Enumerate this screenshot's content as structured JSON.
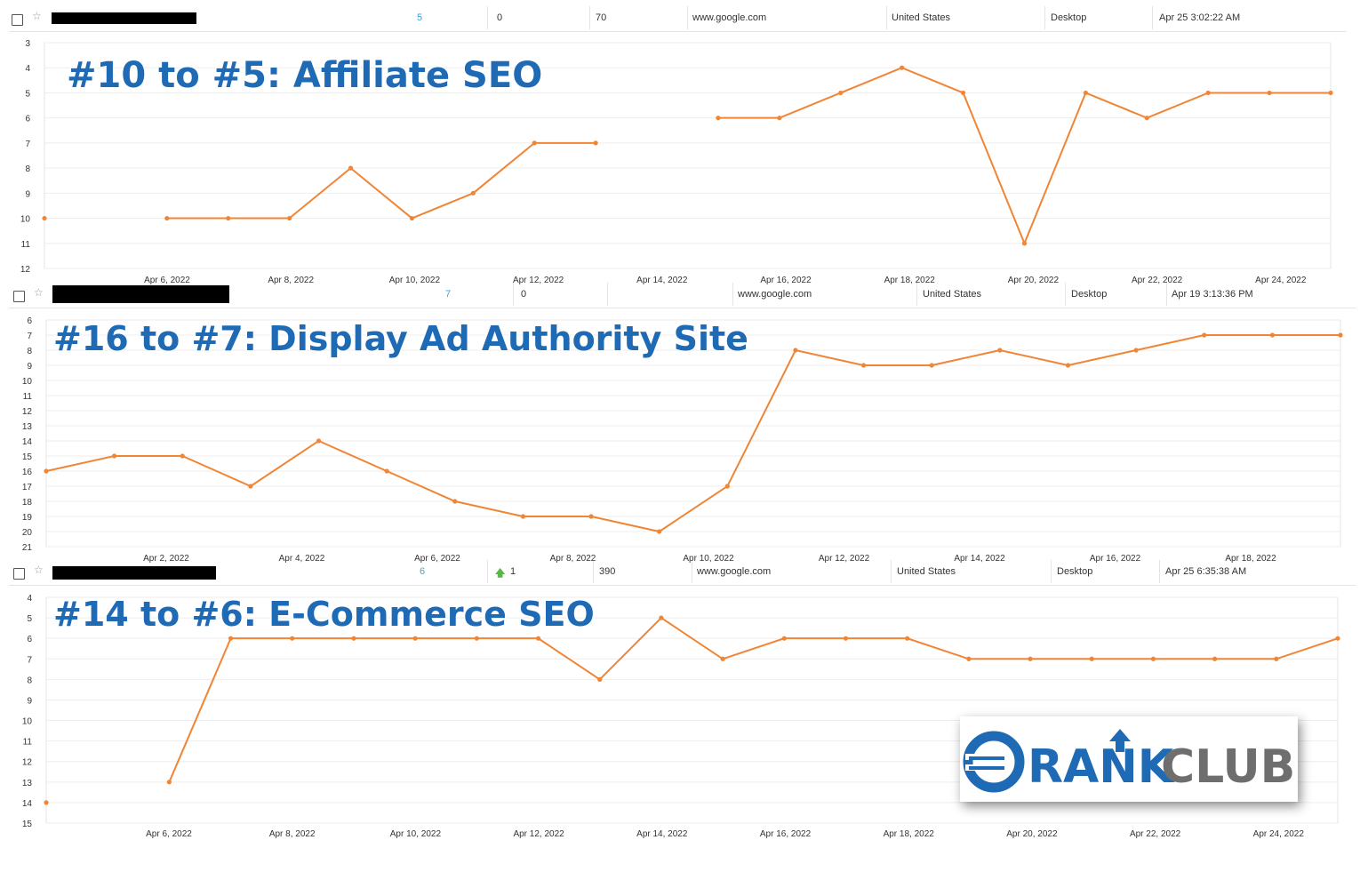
{
  "rows": [
    {
      "position": "5",
      "change": "0",
      "volume": "70",
      "engine": "www.google.com",
      "country": "United States",
      "device": "Desktop",
      "updated": "Apr 25 3:02:22 AM"
    },
    {
      "position": "7",
      "change": "0",
      "volume": "",
      "engine": "www.google.com",
      "country": "United States",
      "device": "Desktop",
      "updated": "Apr 19 3:13:36 PM"
    },
    {
      "position": "6",
      "change": "1",
      "volume": "390",
      "engine": "www.google.com",
      "country": "United States",
      "device": "Desktop",
      "updated": "Apr 25 6:35:38 AM"
    }
  ],
  "icons": {
    "checkbox": "checkbox-icon",
    "star": "star-icon",
    "arrow_up": "arrow-up-icon",
    "logo": "rankclub-logo-icon"
  },
  "colors": {
    "series": "#f08536",
    "title": "#1e6ab4",
    "logo_blue": "#1e6ab4",
    "logo_gray": "#6e6e6e"
  },
  "logo": {
    "text1": "RANK",
    "text2": "CLUB"
  },
  "chart_data": [
    {
      "type": "line",
      "title": "#10 to #5: Affiliate SEO",
      "ylim": [
        3,
        12
      ],
      "y_inverted": true,
      "yticks": [
        3,
        4,
        5,
        6,
        7,
        8,
        9,
        10,
        11,
        12
      ],
      "x_labels": [
        "Apr 6, 2022",
        "Apr 8, 2022",
        "Apr 10, 2022",
        "Apr 12, 2022",
        "Apr 14, 2022",
        "Apr 16, 2022",
        "Apr 18, 2022",
        "Apr 20, 2022",
        "Apr 22, 2022",
        "Apr 24, 2022"
      ],
      "series": [
        {
          "values": [
            10,
            null,
            10,
            10,
            10,
            8,
            10,
            9,
            7,
            7,
            null,
            6,
            6,
            5,
            4,
            5,
            11,
            5,
            6,
            5,
            5,
            5
          ]
        }
      ]
    },
    {
      "type": "line",
      "title": "#16 to #7: Display Ad Authority Site",
      "ylim": [
        6,
        21
      ],
      "y_inverted": true,
      "yticks": [
        6,
        7,
        8,
        9,
        10,
        11,
        12,
        13,
        14,
        15,
        16,
        17,
        18,
        19,
        20,
        21
      ],
      "x_labels": [
        "Apr 2, 2022",
        "Apr 4, 2022",
        "Apr 6, 2022",
        "Apr 8, 2022",
        "Apr 10, 2022",
        "Apr 12, 2022",
        "Apr 14, 2022",
        "Apr 16, 2022",
        "Apr 18, 2022"
      ],
      "series": [
        {
          "values": [
            16,
            15,
            15,
            17,
            14,
            16,
            18,
            19,
            19,
            20,
            17,
            8,
            9,
            9,
            8,
            9,
            8,
            7,
            7,
            7
          ]
        }
      ]
    },
    {
      "type": "line",
      "title": "#14 to #6: E-Commerce SEO",
      "ylim": [
        4,
        15
      ],
      "y_inverted": true,
      "yticks": [
        4,
        5,
        6,
        7,
        8,
        9,
        10,
        11,
        12,
        13,
        14,
        15
      ],
      "x_labels": [
        "Apr 6, 2022",
        "Apr 8, 2022",
        "Apr 10, 2022",
        "Apr 12, 2022",
        "Apr 14, 2022",
        "Apr 16, 2022",
        "Apr 18, 2022",
        "Apr 20, 2022",
        "Apr 22, 2022",
        "Apr 24, 2022"
      ],
      "series": [
        {
          "values": [
            14,
            null,
            13,
            6,
            6,
            6,
            6,
            6,
            6,
            8,
            5,
            7,
            6,
            6,
            6,
            7,
            7,
            7,
            7,
            7,
            7,
            6
          ]
        }
      ]
    }
  ]
}
